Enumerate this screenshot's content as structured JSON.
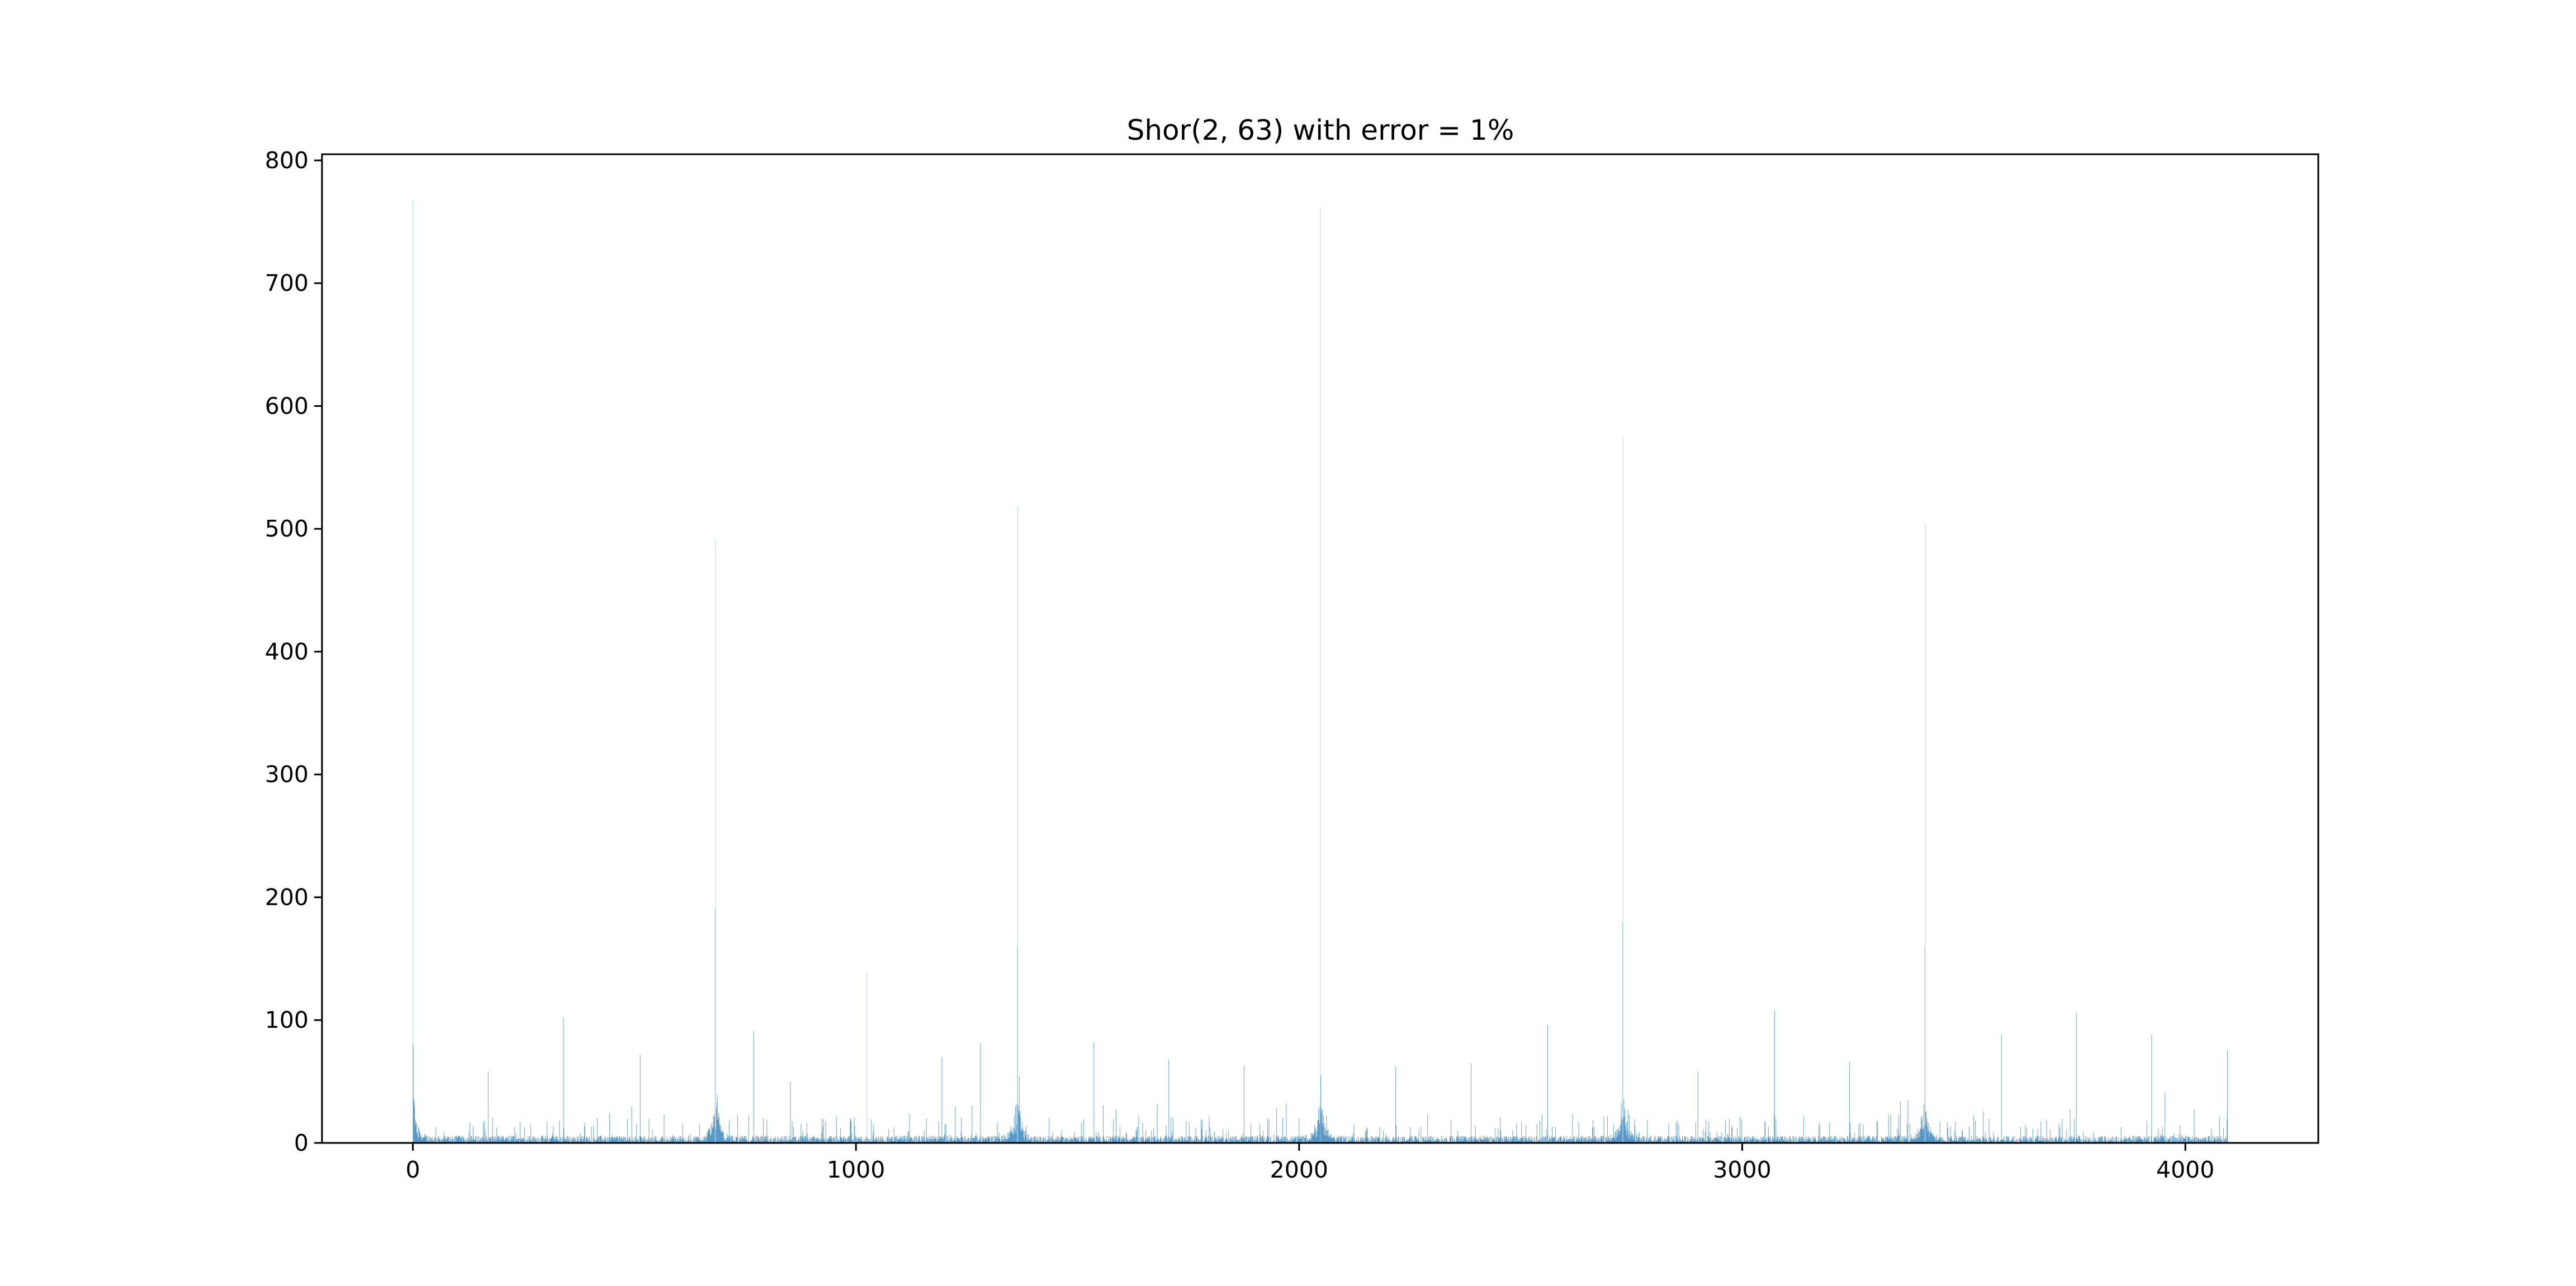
{
  "chart_data": {
    "type": "bar",
    "title": "Shor(2, 63) with error = 1%",
    "xlabel": "",
    "ylabel": "",
    "xlim": [
      -205,
      4300
    ],
    "ylim": [
      0,
      805
    ],
    "x_ticks": [
      0,
      1000,
      2000,
      3000,
      4000
    ],
    "x_tick_labels": [
      "0",
      "1000",
      "2000",
      "3000",
      "4000"
    ],
    "y_ticks": [
      0,
      100,
      200,
      300,
      400,
      500,
      600,
      700,
      800
    ],
    "y_tick_labels": [
      "0",
      "100",
      "200",
      "300",
      "400",
      "500",
      "600",
      "700",
      "800"
    ],
    "grid": false,
    "color": "#1f77b4",
    "n_bins": 4096,
    "peaks": [
      {
        "x": 0,
        "y": 767
      },
      {
        "x": 683,
        "y": 492
      },
      {
        "x": 1365,
        "y": 519
      },
      {
        "x": 2048,
        "y": 762
      },
      {
        "x": 2731,
        "y": 575
      },
      {
        "x": 3413,
        "y": 505
      }
    ],
    "secondary_peaks": [
      {
        "x": 0,
        "y": 80
      },
      {
        "x": 683,
        "y": 190
      },
      {
        "x": 1365,
        "y": 160
      },
      {
        "x": 2048,
        "y": 55
      },
      {
        "x": 2731,
        "y": 180
      },
      {
        "x": 3413,
        "y": 160
      },
      {
        "x": 341,
        "y": 102
      },
      {
        "x": 1024,
        "y": 139
      },
      {
        "x": 1707,
        "y": 68
      },
      {
        "x": 2389,
        "y": 65
      },
      {
        "x": 3072,
        "y": 108
      },
      {
        "x": 3755,
        "y": 106
      },
      {
        "x": 2560,
        "y": 96
      },
      {
        "x": 3584,
        "y": 88
      },
      {
        "x": 3925,
        "y": 88
      },
      {
        "x": 768,
        "y": 91
      },
      {
        "x": 1536,
        "y": 82
      },
      {
        "x": 1280,
        "y": 81
      },
      {
        "x": 4096,
        "y": 75
      },
      {
        "x": 512,
        "y": 72
      },
      {
        "x": 1195,
        "y": 70
      },
      {
        "x": 853,
        "y": 50
      },
      {
        "x": 171,
        "y": 58
      },
      {
        "x": 2901,
        "y": 58
      },
      {
        "x": 3243,
        "y": 66
      },
      {
        "x": 2219,
        "y": 62
      },
      {
        "x": 1877,
        "y": 63
      }
    ],
    "noise_level": 6
  }
}
